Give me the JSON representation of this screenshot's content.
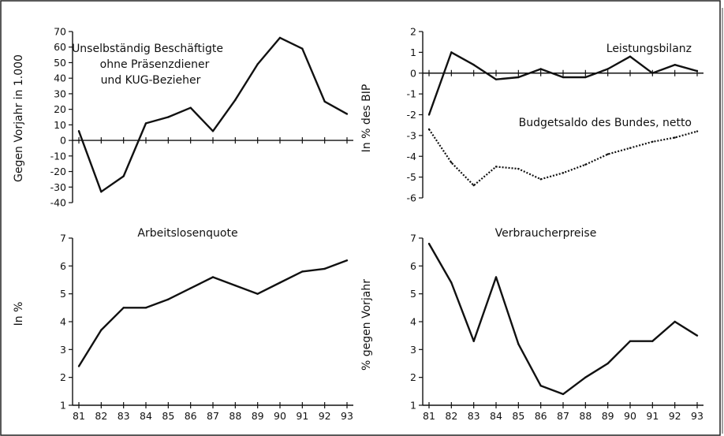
{
  "chart_data": [
    {
      "type": "line",
      "ylabel": "Gegen Vorjahr in 1.000",
      "annotation": [
        "Unselbständig Beschäftigte",
        "ohne Präsenzdiener",
        "und KUG-Bezieher"
      ],
      "categories": [
        "81",
        "82",
        "83",
        "84",
        "85",
        "86",
        "87",
        "88",
        "89",
        "90",
        "91",
        "92",
        "93"
      ],
      "ylim": [
        -40,
        70
      ],
      "yticks": [
        -40,
        -30,
        -20,
        -10,
        0,
        10,
        20,
        30,
        40,
        50,
        60,
        70
      ],
      "show_xtick_labels": false,
      "series": [
        {
          "values": [
            6,
            -33,
            -23,
            11,
            15,
            21,
            6,
            26,
            49,
            66,
            59,
            25,
            17
          ],
          "style": "solid"
        }
      ]
    },
    {
      "type": "line",
      "ylabel": "In % des BIP",
      "categories": [
        "81",
        "82",
        "83",
        "84",
        "85",
        "86",
        "87",
        "88",
        "89",
        "90",
        "91",
        "92",
        "93"
      ],
      "ylim": [
        -6,
        2
      ],
      "yticks": [
        -6,
        -5,
        -4,
        -3,
        -2,
        -1,
        0,
        1,
        2
      ],
      "show_xtick_labels": false,
      "series": [
        {
          "name": "Leistungsbilanz",
          "style": "solid",
          "values": [
            -2.0,
            1.0,
            0.4,
            -0.3,
            -0.2,
            0.2,
            -0.2,
            -0.2,
            0.2,
            0.8,
            0.0,
            0.4,
            0.1
          ]
        },
        {
          "name": "Budgetsaldo des Bundes, netto",
          "style": "dotted",
          "values": [
            -2.7,
            -4.3,
            -5.4,
            -4.5,
            -4.6,
            -5.1,
            -4.8,
            -4.4,
            -3.9,
            -3.6,
            -3.3,
            -3.1,
            -2.8
          ]
        }
      ]
    },
    {
      "type": "line",
      "title": "Arbeitslosenquote",
      "ylabel": "In %",
      "categories": [
        "81",
        "82",
        "83",
        "84",
        "85",
        "86",
        "87",
        "88",
        "89",
        "90",
        "91",
        "92",
        "93"
      ],
      "ylim": [
        1,
        7
      ],
      "yticks": [
        1,
        2,
        3,
        4,
        5,
        6,
        7
      ],
      "show_xtick_labels": true,
      "series": [
        {
          "values": [
            2.4,
            3.7,
            4.5,
            4.5,
            4.8,
            5.2,
            5.6,
            5.3,
            5.0,
            5.4,
            5.8,
            5.9,
            6.2
          ],
          "style": "solid"
        }
      ]
    },
    {
      "type": "line",
      "title": "Verbraucherpreise",
      "ylabel": "% gegen Vorjahr",
      "categories": [
        "81",
        "82",
        "83",
        "84",
        "85",
        "86",
        "87",
        "88",
        "89",
        "90",
        "91",
        "92",
        "93"
      ],
      "ylim": [
        1,
        7
      ],
      "yticks": [
        1,
        2,
        3,
        4,
        5,
        6,
        7
      ],
      "show_xtick_labels": true,
      "series": [
        {
          "values": [
            6.8,
            5.4,
            3.3,
            5.6,
            3.2,
            1.7,
            1.4,
            2.0,
            2.5,
            3.3,
            3.3,
            4.0,
            3.5
          ],
          "style": "solid"
        }
      ]
    }
  ]
}
